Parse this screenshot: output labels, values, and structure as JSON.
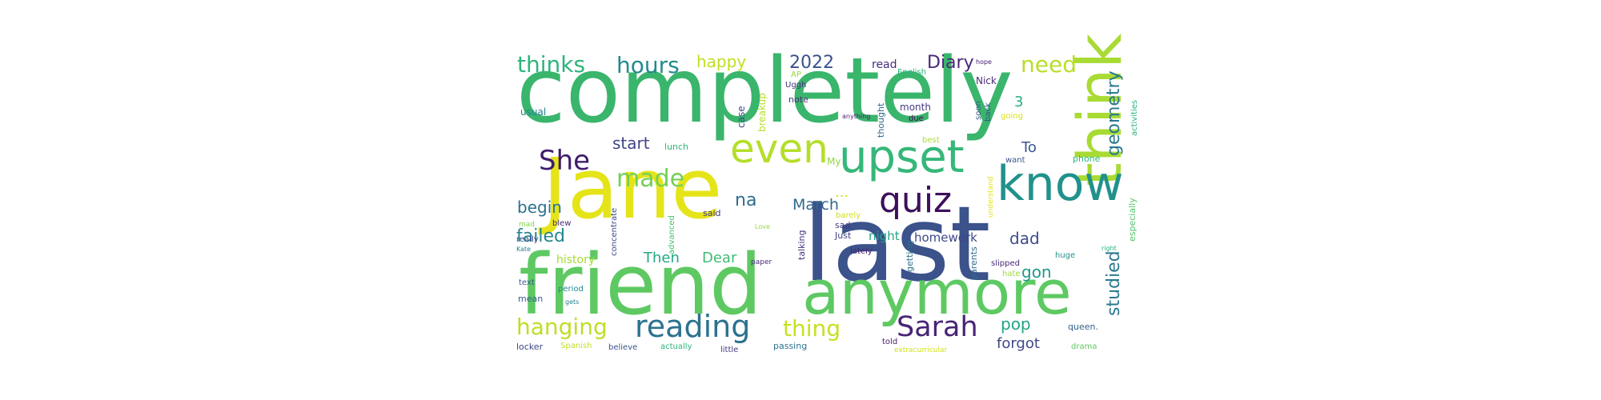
{
  "word_cloud": {
    "words": [
      {
        "text": "completely",
        "color": "#3ab56c"
      },
      {
        "text": "Jane",
        "color": "#e5e419"
      },
      {
        "text": "last",
        "color": "#3b528b"
      },
      {
        "text": "friend",
        "color": "#5ec962"
      },
      {
        "text": "anymore",
        "color": "#5ec962"
      },
      {
        "text": "think",
        "color": "#a8db34"
      },
      {
        "text": "know",
        "color": "#21918c"
      },
      {
        "text": "upset",
        "color": "#35b779"
      },
      {
        "text": "even",
        "color": "#b5de2b"
      },
      {
        "text": "quiz",
        "color": "#3e0f5b"
      },
      {
        "text": "reading",
        "color": "#2c728e"
      },
      {
        "text": "Sarah",
        "color": "#482475"
      },
      {
        "text": "She",
        "color": "#3e1c6b"
      },
      {
        "text": "made",
        "color": "#73d056"
      },
      {
        "text": "hanging",
        "color": "#bddf26"
      },
      {
        "text": "thing",
        "color": "#c8e020"
      },
      {
        "text": "thinks",
        "color": "#2fb47c"
      },
      {
        "text": "hours",
        "color": "#238a8d"
      },
      {
        "text": "need",
        "color": "#b8de29"
      },
      {
        "text": "geometry",
        "color": "#2a788e"
      },
      {
        "text": "studied",
        "color": "#2a788e"
      },
      {
        "text": "2022",
        "color": "#3b528b"
      },
      {
        "text": "Diary",
        "color": "#482878"
      },
      {
        "text": "happy",
        "color": "#c0df25"
      },
      {
        "text": "read",
        "color": "#472c7a"
      },
      {
        "text": "na",
        "color": "#2f6c8e"
      },
      {
        "text": "March",
        "color": "#31688e"
      },
      {
        "text": "start",
        "color": "#414487"
      },
      {
        "text": "begin",
        "color": "#2c728e"
      },
      {
        "text": "failed",
        "color": "#24868e"
      },
      {
        "text": "To",
        "color": "#38588c"
      },
      {
        "text": "dad",
        "color": "#3d4d8a"
      },
      {
        "text": "gon",
        "color": "#1f988b"
      },
      {
        "text": "pop",
        "color": "#21a685"
      },
      {
        "text": "forgot",
        "color": "#404688"
      },
      {
        "text": "homework",
        "color": "#3f4889"
      },
      {
        "text": "night",
        "color": "#21a585"
      },
      {
        "text": "Then",
        "color": "#22a884"
      },
      {
        "text": "Dear",
        "color": "#3fbc73"
      },
      {
        "text": "...",
        "color": "#d2e21b"
      },
      {
        "text": "3",
        "color": "#27ad81"
      },
      {
        "text": "history",
        "color": "#a5db36"
      },
      {
        "text": "Nick",
        "color": "#472d7b"
      },
      {
        "text": "hope",
        "color": "#482071"
      },
      {
        "text": "Uggh",
        "color": "#46327e"
      },
      {
        "text": "AP",
        "color": "#95d840"
      },
      {
        "text": "English",
        "color": "#2fb47c"
      },
      {
        "text": "breakup",
        "color": "#b5de2b"
      },
      {
        "text": "case",
        "color": "#3e4a89"
      },
      {
        "text": "note",
        "color": "#472f7d"
      },
      {
        "text": "anything",
        "color": "#481f70"
      },
      {
        "text": "thought",
        "color": "#31688e"
      },
      {
        "text": "month",
        "color": "#443a83"
      },
      {
        "text": "due",
        "color": "#440154"
      },
      {
        "text": "soon",
        "color": "#38588c"
      },
      {
        "text": "back",
        "color": "#3b528b"
      },
      {
        "text": "activities",
        "color": "#29af7f"
      },
      {
        "text": "going",
        "color": "#d8e219"
      },
      {
        "text": "best",
        "color": "#addc30"
      },
      {
        "text": "usual",
        "color": "#25848e"
      },
      {
        "text": "lunch",
        "color": "#35b779"
      },
      {
        "text": "My",
        "color": "#8fd744"
      },
      {
        "text": "want",
        "color": "#3b528b"
      },
      {
        "text": "phone",
        "color": "#2db27d"
      },
      {
        "text": "said",
        "color": "#443b84"
      },
      {
        "text": "barely",
        "color": "#d0e11c"
      },
      {
        "text": "concentrate",
        "color": "#3e4989"
      },
      {
        "text": "advanced",
        "color": "#46c06f"
      },
      {
        "text": "lately",
        "color": "#482173"
      },
      {
        "text": "understand",
        "color": "#e1e418"
      },
      {
        "text": "especially",
        "color": "#52c569"
      },
      {
        "text": "mad",
        "color": "#84d44b"
      },
      {
        "text": "blew",
        "color": "#472c7a"
      },
      {
        "text": "really",
        "color": "#3e4c8a"
      },
      {
        "text": "Kate",
        "color": "#26818e"
      },
      {
        "text": "Love",
        "color": "#95d840"
      },
      {
        "text": "sad",
        "color": "#453781"
      },
      {
        "text": "Just",
        "color": "#423f85"
      },
      {
        "text": "talking",
        "color": "#46327e"
      },
      {
        "text": "getting",
        "color": "#2c728e"
      },
      {
        "text": "parents",
        "color": "#2f6b8e"
      },
      {
        "text": "slipped",
        "color": "#482979"
      },
      {
        "text": "huge",
        "color": "#21918c"
      },
      {
        "text": "right",
        "color": "#2ab07f"
      },
      {
        "text": "hate",
        "color": "#9dd93b"
      },
      {
        "text": "paper",
        "color": "#482576"
      },
      {
        "text": "text",
        "color": "#39568c"
      },
      {
        "text": "period",
        "color": "#23898e"
      },
      {
        "text": "mean",
        "color": "#365d8d"
      },
      {
        "text": "gets",
        "color": "#27808e"
      },
      {
        "text": "queen.",
        "color": "#35608d"
      },
      {
        "text": "locker",
        "color": "#404588"
      },
      {
        "text": "Spanish",
        "color": "#c2df23"
      },
      {
        "text": "believe",
        "color": "#3a548c"
      },
      {
        "text": "actually",
        "color": "#2eb37c"
      },
      {
        "text": "little",
        "color": "#453882"
      },
      {
        "text": "passing",
        "color": "#2c718e"
      },
      {
        "text": "told",
        "color": "#481b6d"
      },
      {
        "text": "extracurricular",
        "color": "#d2e21b"
      },
      {
        "text": "drama",
        "color": "#5ec962"
      }
    ]
  }
}
